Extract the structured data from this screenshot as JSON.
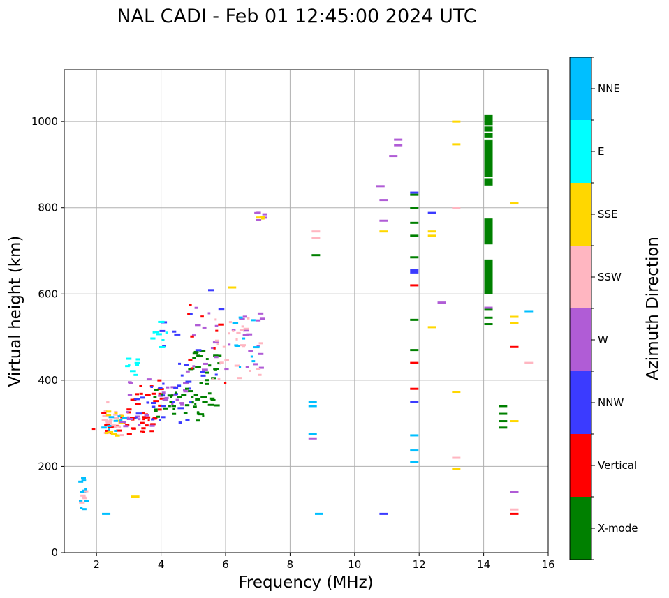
{
  "chart_data": {
    "type": "scatter",
    "title": "NAL CADI - Feb 01 12:45:00 2024 UTC",
    "xlabel": "Frequency (MHz)",
    "ylabel": "Virtual height (km)",
    "xlim": [
      1,
      16
    ],
    "ylim": [
      0,
      1120
    ],
    "xticks": [
      2,
      4,
      6,
      8,
      10,
      12,
      14,
      16
    ],
    "yticks": [
      0,
      200,
      400,
      600,
      800,
      1000
    ],
    "grid": true,
    "colorbar": {
      "label": "Azimuth Direction",
      "categories": [
        {
          "name": "X-mode",
          "color": "#008000"
        },
        {
          "name": "Vertical",
          "color": "#ff0000"
        },
        {
          "name": "NNW",
          "color": "#3b3bff"
        },
        {
          "name": "W",
          "color": "#b05cd6"
        },
        {
          "name": "SSW",
          "color": "#ffb6c1"
        },
        {
          "name": "SSE",
          "color": "#ffd700"
        },
        {
          "name": "E",
          "color": "#00ffff"
        },
        {
          "name": "NNE",
          "color": "#00bfff"
        }
      ]
    },
    "clusters": [
      {
        "name": "Vertical",
        "f": [
          1.9,
          3.8
        ],
        "h": [
          270,
          330
        ],
        "n": 30
      },
      {
        "name": "Vertical",
        "f": [
          3.0,
          4.2
        ],
        "h": [
          300,
          400
        ],
        "n": 25
      },
      {
        "name": "SSW",
        "f": [
          2.1,
          2.8
        ],
        "h": [
          270,
          350
        ],
        "n": 18
      },
      {
        "name": "SSE",
        "f": [
          2.2,
          2.8
        ],
        "h": [
          270,
          330
        ],
        "n": 10
      },
      {
        "name": "NNE",
        "f": [
          2.2,
          3.0
        ],
        "h": [
          280,
          320
        ],
        "n": 10
      },
      {
        "name": "W",
        "f": [
          2.8,
          4.8
        ],
        "h": [
          290,
          420
        ],
        "n": 30
      },
      {
        "name": "NNW",
        "f": [
          3.2,
          5.0
        ],
        "h": [
          300,
          400
        ],
        "n": 25
      },
      {
        "name": "X-mode",
        "f": [
          3.8,
          5.4
        ],
        "h": [
          305,
          380
        ],
        "n": 30
      },
      {
        "name": "X-mode",
        "f": [
          4.8,
          5.8
        ],
        "h": [
          340,
          470
        ],
        "n": 30
      },
      {
        "name": "W",
        "f": [
          4.8,
          7.3
        ],
        "h": [
          420,
          580
        ],
        "n": 30
      },
      {
        "name": "SSW",
        "f": [
          5.6,
          7.2
        ],
        "h": [
          400,
          560
        ],
        "n": 25
      },
      {
        "name": "NNE",
        "f": [
          6.2,
          7.1
        ],
        "h": [
          420,
          560
        ],
        "n": 10
      },
      {
        "name": "NNW",
        "f": [
          4.0,
          6.0
        ],
        "h": [
          360,
          620
        ],
        "n": 15
      },
      {
        "name": "Vertical",
        "f": [
          4.8,
          6.2
        ],
        "h": [
          390,
          600
        ],
        "n": 10
      },
      {
        "name": "E",
        "f": [
          2.9,
          3.3
        ],
        "h": [
          410,
          450
        ],
        "n": 8
      },
      {
        "name": "E",
        "f": [
          3.5,
          4.2
        ],
        "h": [
          460,
          540
        ],
        "n": 10
      },
      {
        "name": "NNE",
        "f": [
          1.5,
          1.7
        ],
        "h": [
          100,
          200
        ],
        "n": 10
      },
      {
        "name": "SSW",
        "f": [
          1.5,
          1.7
        ],
        "h": [
          100,
          150
        ],
        "n": 5
      },
      {
        "name": "W",
        "f": [
          6.9,
          7.5
        ],
        "h": [
          760,
          790
        ],
        "n": 5
      },
      {
        "name": "SSE",
        "f": [
          7.0,
          7.2
        ],
        "h": [
          770,
          790
        ],
        "n": 3
      }
    ],
    "single_marks": [
      {
        "name": "NNE",
        "f": 2.3,
        "h": 90
      },
      {
        "name": "SSE",
        "f": 3.2,
        "h": 130
      },
      {
        "name": "SSE",
        "f": 6.2,
        "h": 615
      },
      {
        "name": "SSW",
        "f": 8.8,
        "h": 745
      },
      {
        "name": "SSW",
        "f": 8.8,
        "h": 730
      },
      {
        "name": "X-mode",
        "f": 8.8,
        "h": 690
      },
      {
        "name": "NNE",
        "f": 8.7,
        "h": 350
      },
      {
        "name": "NNE",
        "f": 8.7,
        "h": 340
      },
      {
        "name": "NNE",
        "f": 8.7,
        "h": 275
      },
      {
        "name": "W",
        "f": 8.7,
        "h": 265
      },
      {
        "name": "NNE",
        "f": 8.9,
        "h": 90
      },
      {
        "name": "NNW",
        "f": 10.9,
        "h": 90
      },
      {
        "name": "W",
        "f": 10.8,
        "h": 850
      },
      {
        "name": "W",
        "f": 10.9,
        "h": 818
      },
      {
        "name": "W",
        "f": 10.9,
        "h": 770
      },
      {
        "name": "SSE",
        "f": 10.9,
        "h": 745
      },
      {
        "name": "W",
        "f": 11.2,
        "h": 920
      },
      {
        "name": "W",
        "f": 11.35,
        "h": 958
      },
      {
        "name": "W",
        "f": 11.35,
        "h": 945
      },
      {
        "name": "NNW",
        "f": 11.85,
        "h": 835
      },
      {
        "name": "X-mode",
        "f": 11.85,
        "h": 830
      },
      {
        "name": "X-mode",
        "f": 11.85,
        "h": 800
      },
      {
        "name": "X-mode",
        "f": 11.85,
        "h": 765
      },
      {
        "name": "X-mode",
        "f": 11.85,
        "h": 735
      },
      {
        "name": "X-mode",
        "f": 11.85,
        "h": 685
      },
      {
        "name": "NNW",
        "f": 11.85,
        "h": 655
      },
      {
        "name": "NNW",
        "f": 11.85,
        "h": 650
      },
      {
        "name": "Vertical",
        "f": 11.85,
        "h": 620
      },
      {
        "name": "X-mode",
        "f": 11.85,
        "h": 540
      },
      {
        "name": "X-mode",
        "f": 11.85,
        "h": 470
      },
      {
        "name": "Vertical",
        "f": 11.85,
        "h": 440
      },
      {
        "name": "Vertical",
        "f": 11.85,
        "h": 380
      },
      {
        "name": "NNW",
        "f": 11.85,
        "h": 350
      },
      {
        "name": "NNE",
        "f": 11.85,
        "h": 272
      },
      {
        "name": "NNE",
        "f": 11.85,
        "h": 237
      },
      {
        "name": "NNE",
        "f": 11.85,
        "h": 210
      },
      {
        "name": "NNW",
        "f": 12.4,
        "h": 788
      },
      {
        "name": "SSE",
        "f": 12.4,
        "h": 745
      },
      {
        "name": "SSE",
        "f": 12.4,
        "h": 735
      },
      {
        "name": "SSE",
        "f": 12.4,
        "h": 523
      },
      {
        "name": "W",
        "f": 12.7,
        "h": 580
      },
      {
        "name": "SSE",
        "f": 13.15,
        "h": 1000
      },
      {
        "name": "SSE",
        "f": 13.15,
        "h": 947
      },
      {
        "name": "SSW",
        "f": 13.15,
        "h": 800
      },
      {
        "name": "SSE",
        "f": 13.15,
        "h": 373
      },
      {
        "name": "SSW",
        "f": 13.15,
        "h": 220
      },
      {
        "name": "SSE",
        "f": 13.15,
        "h": 195
      },
      {
        "name": "X-mode",
        "f": 14.6,
        "h": 340
      },
      {
        "name": "X-mode",
        "f": 14.6,
        "h": 322
      },
      {
        "name": "X-mode",
        "f": 14.6,
        "h": 305
      },
      {
        "name": "X-mode",
        "f": 14.6,
        "h": 290
      },
      {
        "name": "SSE",
        "f": 14.95,
        "h": 810
      },
      {
        "name": "SSE",
        "f": 14.95,
        "h": 547
      },
      {
        "name": "SSE",
        "f": 14.95,
        "h": 533
      },
      {
        "name": "Vertical",
        "f": 14.95,
        "h": 477
      },
      {
        "name": "SSE",
        "f": 14.95,
        "h": 305
      },
      {
        "name": "W",
        "f": 14.95,
        "h": 140
      },
      {
        "name": "SSW",
        "f": 14.95,
        "h": 100
      },
      {
        "name": "Vertical",
        "f": 14.95,
        "h": 90
      },
      {
        "name": "NNE",
        "f": 15.4,
        "h": 560
      },
      {
        "name": "SSW",
        "f": 15.4,
        "h": 440
      }
    ],
    "column_14MHz": {
      "name": "X-mode",
      "f": 14.15,
      "bands": [
        [
          600,
          680
        ],
        [
          715,
          775
        ],
        [
          850,
          955
        ],
        [
          955,
          1015
        ]
      ],
      "gap_lines": [
        960,
        975,
        990,
        870,
        850
      ],
      "ticks": [
        {
          "name": "X-mode",
          "h": 565
        },
        {
          "name": "W",
          "h": 568
        },
        {
          "name": "X-mode",
          "h": 545
        },
        {
          "name": "X-mode",
          "h": 530
        }
      ]
    }
  }
}
